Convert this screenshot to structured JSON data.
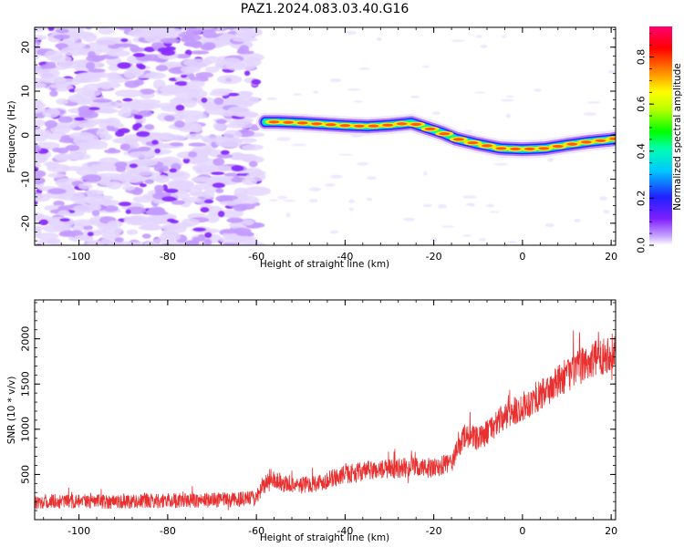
{
  "title": "PAZ1.2024.083.03.40.G16",
  "chart_data": [
    {
      "type": "heatmap",
      "title": "PAZ1.2024.083.03.40.G16",
      "xlabel": "Height of straight line (km)",
      "ylabel": "Frequency (Hz)",
      "xlim": [
        -110,
        21
      ],
      "ylim": [
        -25,
        24.5
      ],
      "x_ticks": [
        -100,
        -80,
        -60,
        -40,
        -20,
        0,
        20
      ],
      "y_ticks": [
        -20,
        -10,
        0,
        10,
        20
      ],
      "noise_region_x": [
        -110,
        -60
      ],
      "ridge": {
        "x": [
          -58,
          -55,
          -50,
          -45,
          -40,
          -35,
          -30,
          -25,
          -22,
          -18,
          -15,
          -10,
          -5,
          0,
          5,
          10,
          15,
          20,
          21
        ],
        "y": [
          3,
          3,
          2.8,
          2.5,
          2.2,
          2,
          2.3,
          2.8,
          1.8,
          0.5,
          -0.8,
          -2,
          -3,
          -3.2,
          -3,
          -2.2,
          -1.5,
          -1,
          -0.8
        ]
      },
      "colorbar": {
        "label": "Normalized spectral amplitude",
        "range": [
          0,
          0.93
        ],
        "ticks": [
          0.0,
          0.2,
          0.4,
          0.6,
          0.8
        ]
      }
    },
    {
      "type": "line",
      "xlabel": "Height of straight line (km)",
      "ylabel": "SNR (10 * v/v)",
      "xlim": [
        -110,
        21
      ],
      "ylim": [
        0,
        2430
      ],
      "x_ticks": [
        -100,
        -80,
        -60,
        -40,
        -20,
        0,
        20
      ],
      "y_ticks": [
        500,
        1000,
        1500,
        2000
      ],
      "color": "#e83030",
      "trend": {
        "x": [
          -110,
          -95,
          -80,
          -65,
          -60,
          -57,
          -54,
          -50,
          -45,
          -40,
          -35,
          -30,
          -25,
          -20,
          -16,
          -13,
          -10,
          -5,
          0,
          5,
          10,
          15,
          20,
          21
        ],
        "y": [
          200,
          200,
          210,
          220,
          240,
          470,
          400,
          380,
          420,
          500,
          540,
          560,
          580,
          560,
          630,
          940,
          880,
          1100,
          1250,
          1400,
          1600,
          1750,
          1850,
          1870
        ]
      },
      "noise_amplitude": 110
    }
  ]
}
